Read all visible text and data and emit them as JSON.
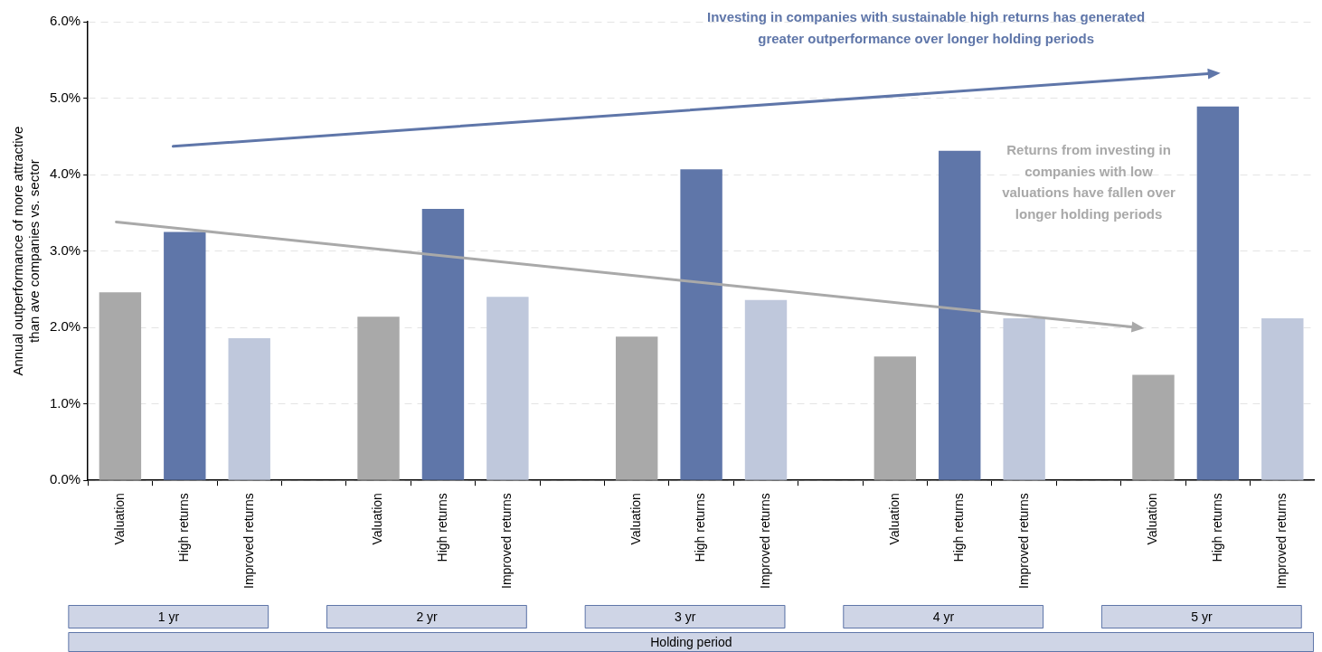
{
  "chart_data": {
    "type": "bar",
    "categories": [
      "Valuation",
      "High returns",
      "Improved returns",
      null,
      "Valuation",
      "High returns",
      "Improved returns",
      null,
      "Valuation",
      "High returns",
      "Improved returns",
      null,
      "Valuation",
      "High returns",
      "Improved returns",
      null,
      "Valuation",
      "High returns",
      "Improved returns"
    ],
    "values": [
      2.46,
      3.25,
      1.86,
      null,
      2.14,
      3.55,
      2.4,
      null,
      1.88,
      4.07,
      2.36,
      null,
      1.62,
      4.31,
      2.12,
      null,
      1.38,
      4.89,
      2.12
    ],
    "colors": [
      "#a9a9a9",
      "#5f76a9",
      "#bfc8dc",
      null,
      "#a9a9a9",
      "#5f76a9",
      "#bfc8dc",
      null,
      "#a9a9a9",
      "#5f76a9",
      "#bfc8dc",
      null,
      "#a9a9a9",
      "#5f76a9",
      "#bfc8dc",
      null,
      "#a9a9a9",
      "#5f76a9",
      "#bfc8dc"
    ],
    "ylabel": "Annual outperformance of more attractive than ave companies vs. sector",
    "xlabel": "Holding period",
    "ylim": [
      0,
      6
    ],
    "yticks": [
      {
        "value": 0,
        "label": "0.0%"
      },
      {
        "value": 1,
        "label": "1.0%"
      },
      {
        "value": 2,
        "label": "2.0%"
      },
      {
        "value": 3,
        "label": "3.0%"
      },
      {
        "value": 4,
        "label": "4.0%"
      },
      {
        "value": 5,
        "label": "5.0%"
      },
      {
        "value": 6,
        "label": "6.0%"
      }
    ],
    "grid": "y",
    "legend": false,
    "annotations": [
      "Investing in companies with sustainable high returns has generated greater outperformance over longer holding periods",
      "Returns from investing in companies with low valuations have fallen over longer holding periods",
      "1 yr",
      "2 yr",
      "3 yr",
      "4 yr",
      "5 yr"
    ]
  }
}
